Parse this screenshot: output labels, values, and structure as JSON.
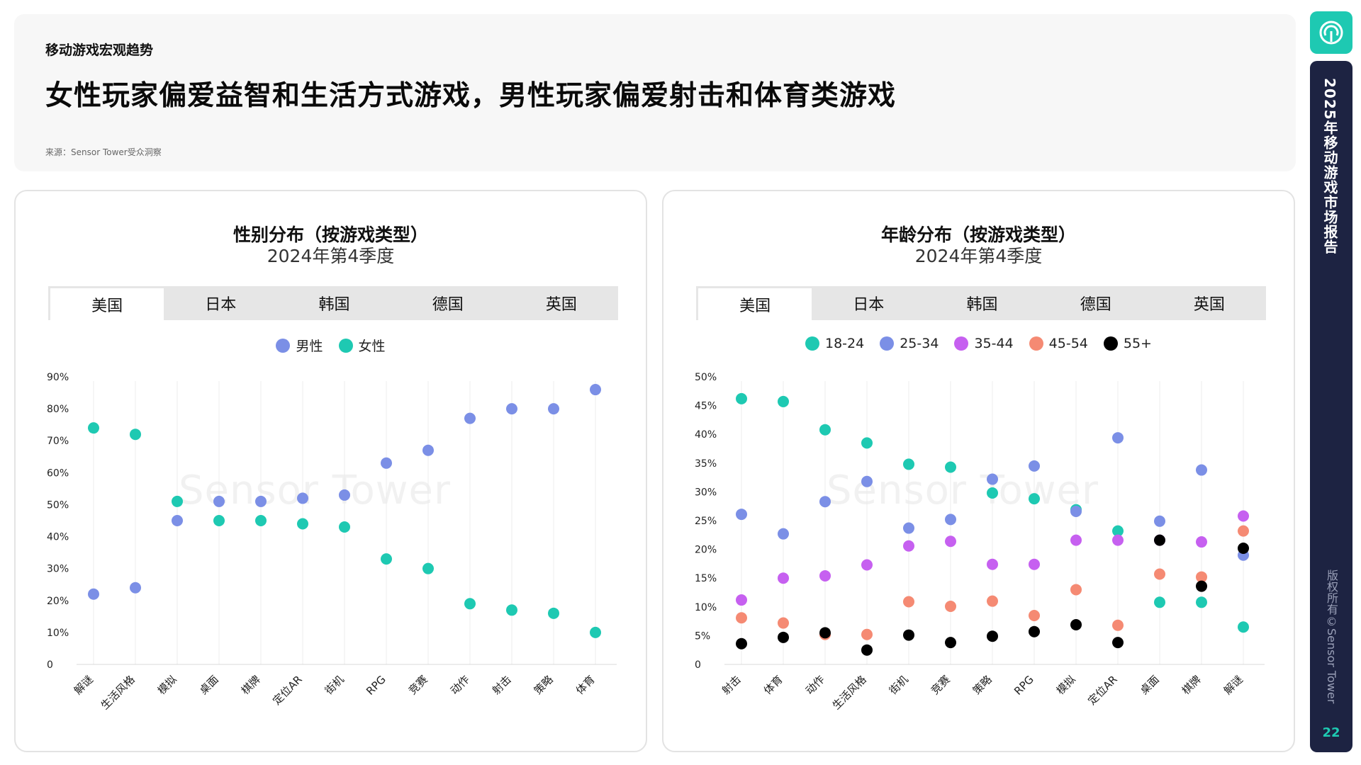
{
  "header": {
    "section_label": "移动游戏宏观趋势",
    "headline": "女性玩家偏爱益智和生活方式游戏，男性玩家偏爱射击和体育类游戏",
    "source": "来源：Sensor Tower受众洞察"
  },
  "sidebar": {
    "report_title": "2025年移动游戏市场报告",
    "copyright": "版权所有©Sensor Tower",
    "page_number": "22",
    "logo_icon": "sensor-tower-logo-icon"
  },
  "watermark": "Sensor Tower",
  "colors": {
    "accent": "#1ec9b2",
    "male": "#7b8fe6",
    "female": "#1ec9b2",
    "age_18_24": "#1ec9b2",
    "age_25_34": "#7b8fe6",
    "age_35_44": "#c660f0",
    "age_45_54": "#f58a73",
    "age_55_plus": "#000000"
  },
  "gender_panel": {
    "title": "性别分布（按游戏类型）",
    "subtitle": "2024年第4季度",
    "tabs": [
      "美国",
      "日本",
      "韩国",
      "德国",
      "英国"
    ],
    "active_tab": 0,
    "legend": [
      "男性",
      "女性"
    ]
  },
  "age_panel": {
    "title": "年龄分布（按游戏类型）",
    "subtitle": "2024年第4季度",
    "tabs": [
      "美国",
      "日本",
      "韩国",
      "德国",
      "英国"
    ],
    "active_tab": 0,
    "legend": [
      "18-24",
      "25-34",
      "35-44",
      "45-54",
      "55+"
    ]
  },
  "chart_data": [
    {
      "type": "scatter",
      "title": "性别分布（按游戏类型）",
      "subtitle": "2024年第4季度",
      "categories": [
        "解谜",
        "生活风格",
        "模拟",
        "桌面",
        "棋牌",
        "定位AR",
        "街机",
        "RPG",
        "竞赛",
        "动作",
        "射击",
        "策略",
        "体育"
      ],
      "ylim": [
        0,
        90
      ],
      "yticks": [
        "0",
        "10%",
        "20%",
        "30%",
        "40%",
        "50%",
        "60%",
        "70%",
        "80%",
        "90%"
      ],
      "series": [
        {
          "name": "男性",
          "values": [
            22,
            24,
            45,
            51,
            51,
            52,
            53,
            63,
            67,
            77,
            80,
            80,
            86
          ]
        },
        {
          "name": "女性",
          "values": [
            74,
            72,
            51,
            45,
            45,
            44,
            43,
            33,
            30,
            19,
            17,
            16,
            10
          ]
        }
      ],
      "legend_position": "top-center",
      "grid": "vertical"
    },
    {
      "type": "scatter",
      "title": "年龄分布（按游戏类型）",
      "subtitle": "2024年第4季度",
      "categories": [
        "射击",
        "体育",
        "动作",
        "生活风格",
        "街机",
        "竞赛",
        "策略",
        "RPG",
        "模拟",
        "定位AR",
        "桌面",
        "棋牌",
        "解谜"
      ],
      "ylim": [
        0,
        50
      ],
      "yticks": [
        "0",
        "5%",
        "10%",
        "15%",
        "20%",
        "25%",
        "30%",
        "35%",
        "40%",
        "45%",
        "50%"
      ],
      "series": [
        {
          "name": "18-24",
          "values": [
            46.2,
            45.7,
            40.8,
            38.5,
            34.8,
            34.3,
            29.8,
            28.8,
            26.9,
            23.2,
            10.8,
            10.8,
            6.5
          ]
        },
        {
          "name": "25-34",
          "values": [
            26.1,
            22.7,
            28.3,
            31.8,
            23.7,
            25.2,
            32.2,
            34.5,
            26.6,
            39.4,
            24.9,
            33.8,
            19.0
          ]
        },
        {
          "name": "35-44",
          "values": [
            11.2,
            15.0,
            15.4,
            17.3,
            20.6,
            21.4,
            17.4,
            17.4,
            21.6,
            21.6,
            21.6,
            21.3,
            25.8
          ]
        },
        {
          "name": "45-54",
          "values": [
            8.1,
            7.2,
            5.2,
            5.2,
            10.9,
            10.1,
            11.0,
            8.5,
            13.0,
            6.8,
            15.7,
            15.2,
            23.2
          ]
        },
        {
          "name": "55+",
          "values": [
            3.6,
            4.7,
            5.5,
            2.5,
            5.1,
            3.8,
            4.9,
            5.7,
            6.9,
            3.8,
            21.6,
            13.6,
            20.2
          ]
        }
      ],
      "legend_position": "top-center",
      "grid": "vertical"
    }
  ]
}
